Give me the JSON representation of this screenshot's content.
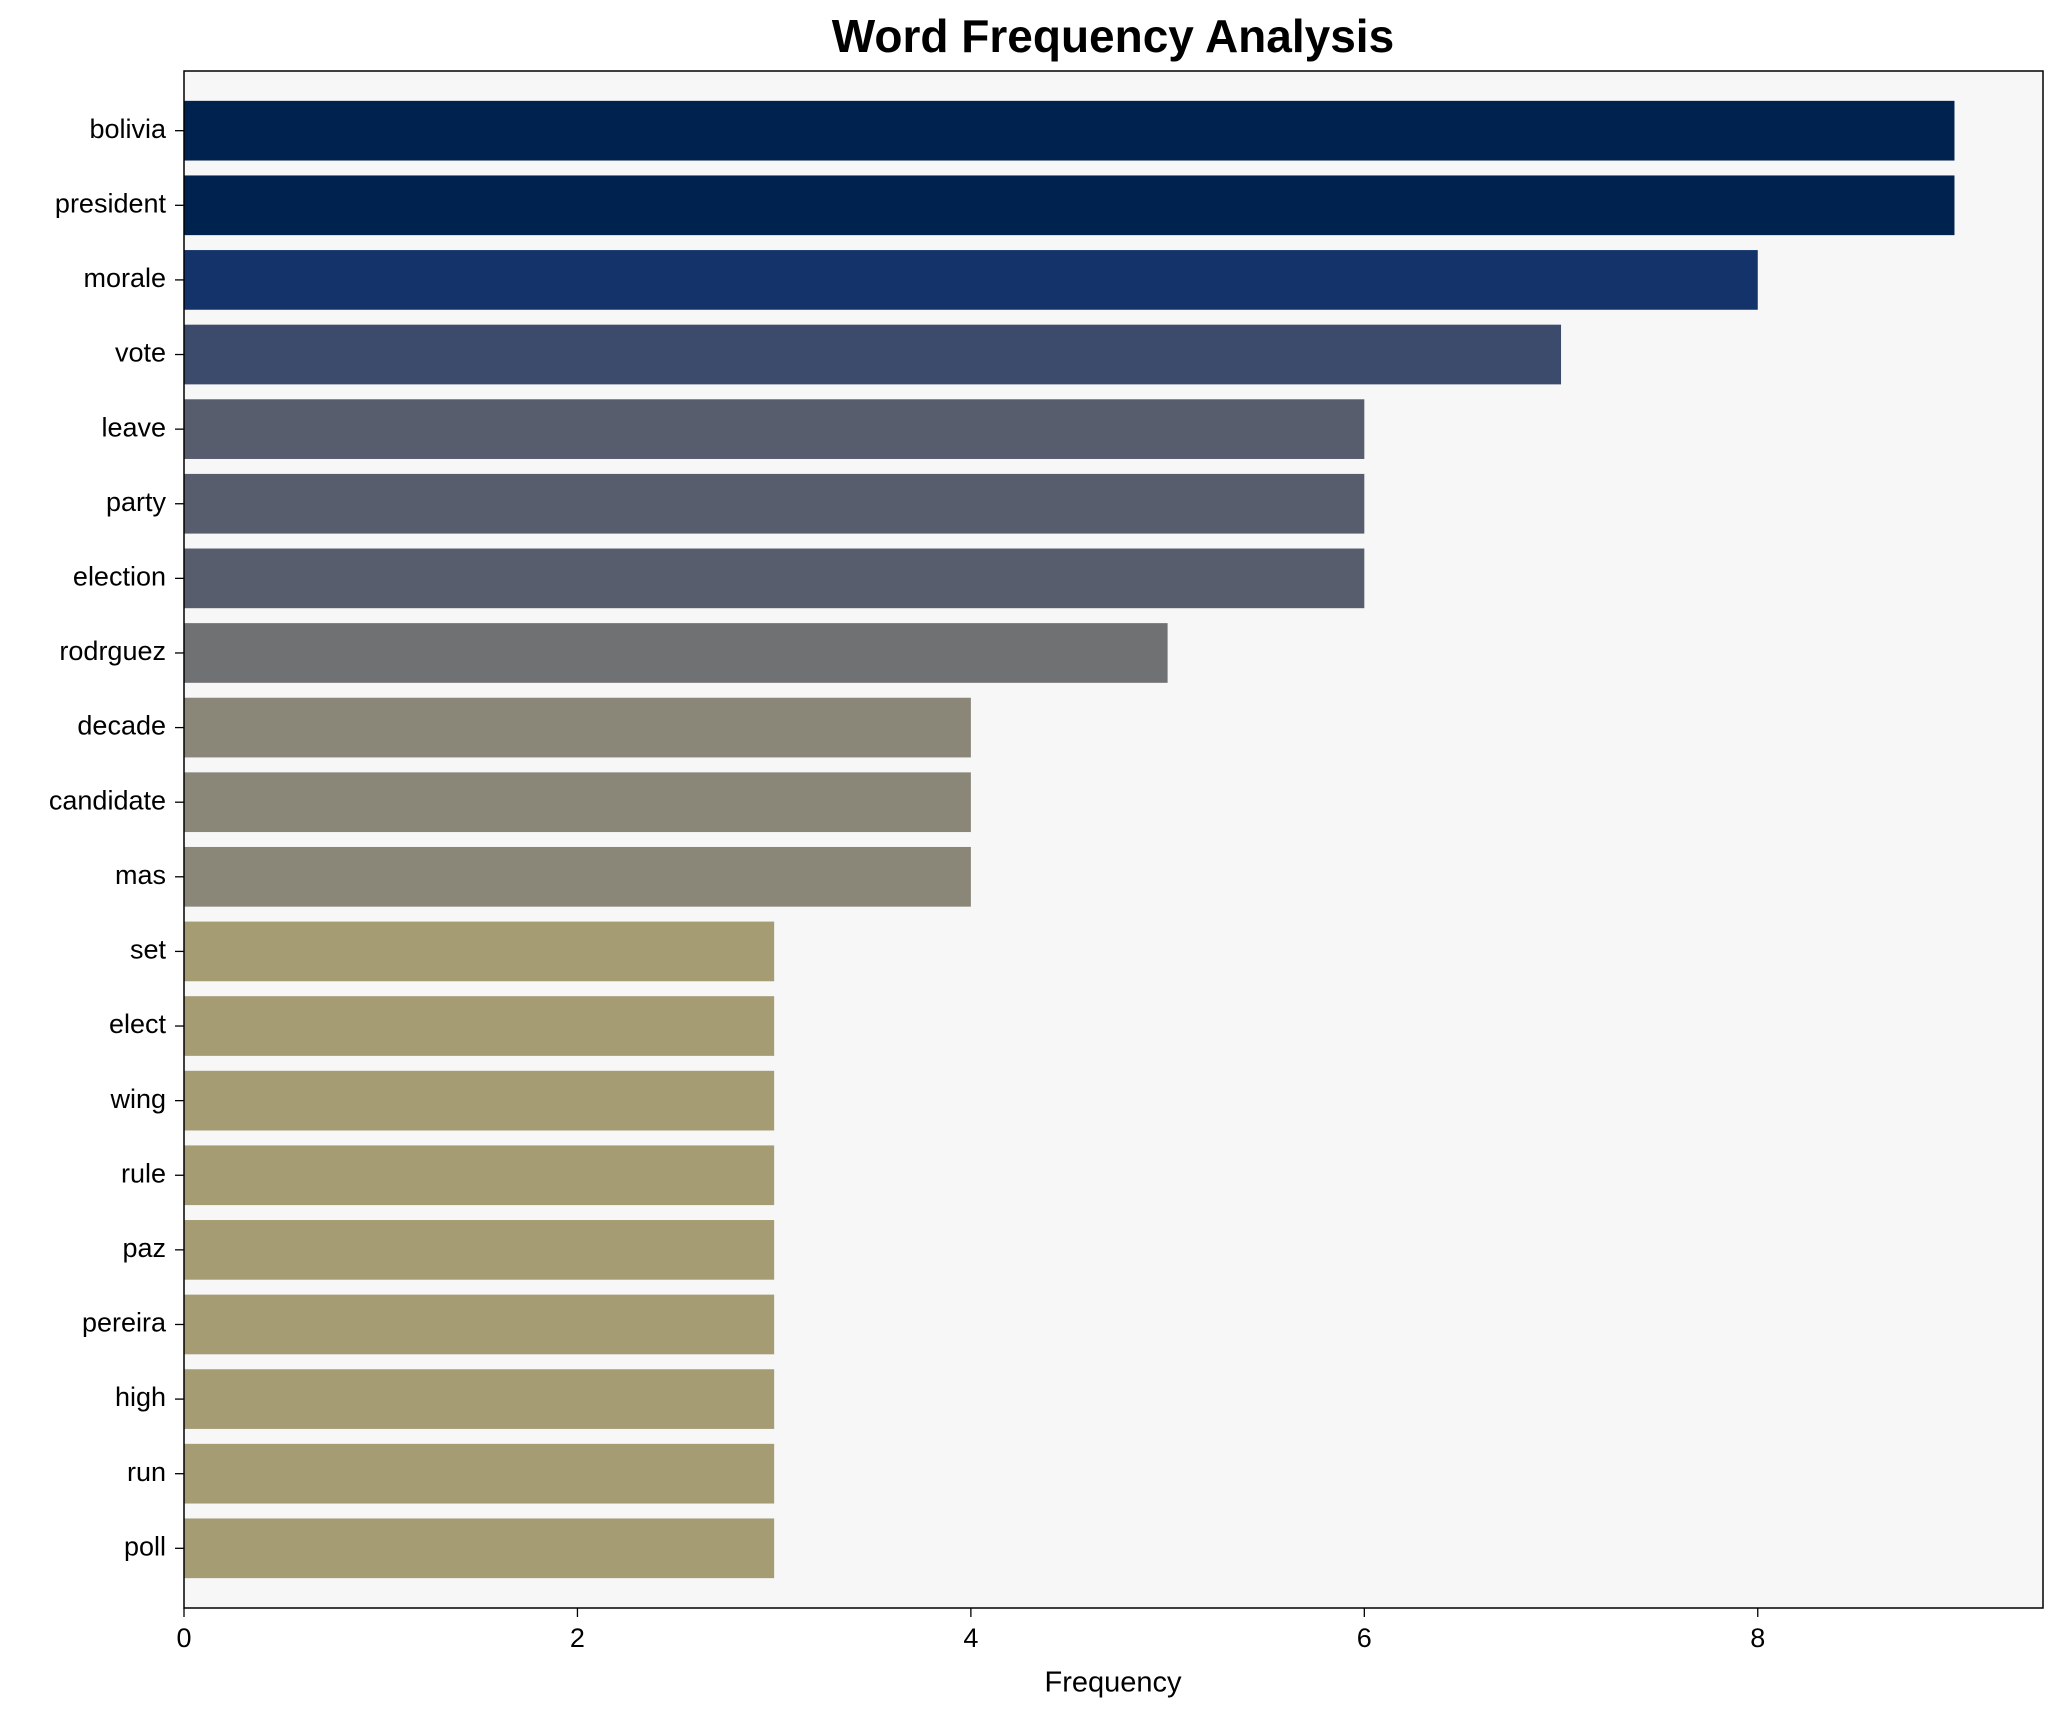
{
  "chart_data": {
    "type": "barh",
    "title": "Word Frequency Analysis",
    "x_label": "Frequency",
    "categories": [
      "bolivia",
      "president",
      "morale",
      "vote",
      "leave",
      "party",
      "election",
      "rodrguez",
      "decade",
      "candidate",
      "mas",
      "set",
      "elect",
      "wing",
      "rule",
      "paz",
      "pereira",
      "high",
      "run",
      "poll"
    ],
    "values": [
      9,
      9,
      8,
      7,
      6,
      6,
      6,
      5,
      4,
      4,
      4,
      3,
      3,
      3,
      3,
      3,
      3,
      3,
      3,
      3
    ],
    "colors": [
      "#00224e",
      "#00224e",
      "#14336b",
      "#3c4a6c",
      "#575d6d",
      "#575d6d",
      "#575d6d",
      "#707173",
      "#8a8678",
      "#8a8678",
      "#8a8678",
      "#a59c74",
      "#a59c74",
      "#a59c74",
      "#a59c74",
      "#a59c74",
      "#a59c74",
      "#a59c74",
      "#a59c74",
      "#a59c74"
    ],
    "xlim": [
      0,
      9.45
    ],
    "xticks": [
      0,
      2,
      4,
      6,
      8
    ]
  }
}
